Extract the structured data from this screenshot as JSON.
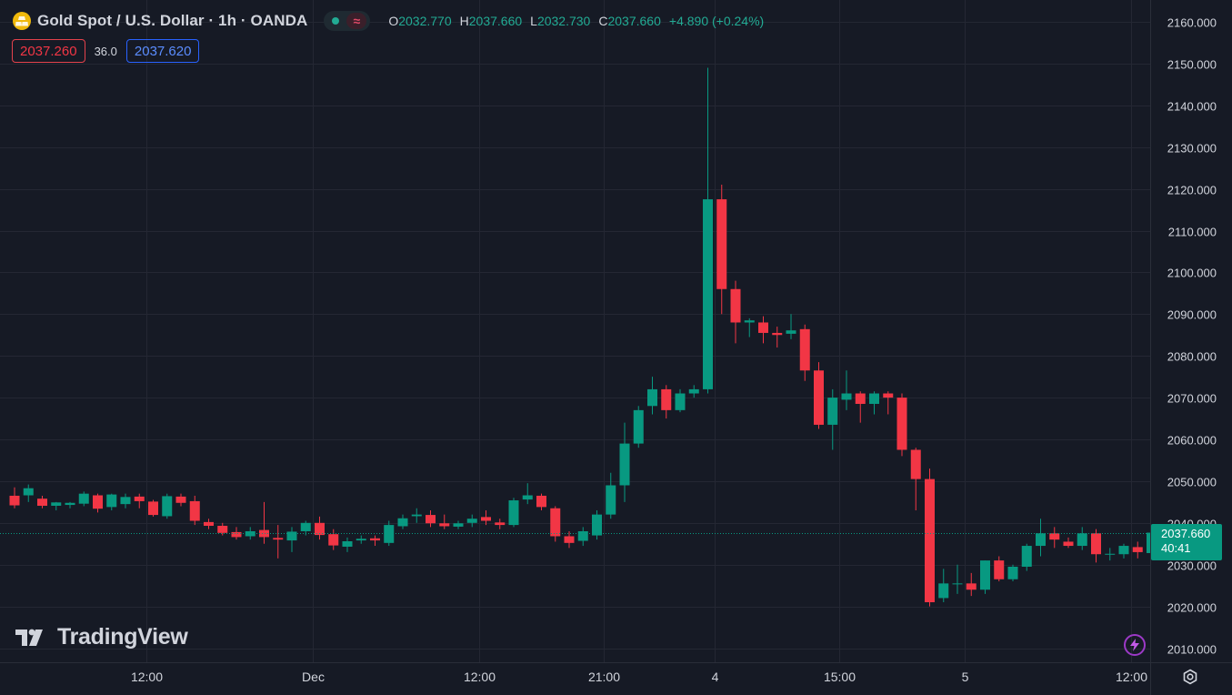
{
  "legend": {
    "title": "Gold Spot / U.S. Dollar · 1h · OANDA",
    "approx_symbol": "≈",
    "o_label": "O",
    "o_val": "2032.770",
    "h_label": "H",
    "h_val": "2037.660",
    "l_label": "L",
    "l_val": "2032.730",
    "c_label": "C",
    "c_val": "2037.660",
    "change": "+4.890 (+0.24%)"
  },
  "quote": {
    "bid": "2037.260",
    "spread": "36.0",
    "ask": "2037.620"
  },
  "branding": {
    "name": "TradingView"
  },
  "last_price": {
    "price": "2037.660",
    "countdown": "40:41"
  },
  "icons": {
    "symbol": "gold-bars-icon",
    "status": "market-open-dot-icon",
    "logo": "tradingview-logo-icon",
    "alert": "lightning-bolt-icon",
    "settings": "gear-icon"
  },
  "colors": {
    "up": "#089981",
    "down": "#f23645",
    "background": "#161a25",
    "grid": "#242733",
    "text": "#d1d4dc"
  },
  "chart_data": {
    "type": "candlestick",
    "title": "Gold Spot / U.S. Dollar · 1h · OANDA",
    "ylim": [
      2005,
      2163
    ],
    "y_ticks": [
      2010,
      2020,
      2030,
      2040,
      2050,
      2060,
      2070,
      2080,
      2090,
      2100,
      2110,
      2120,
      2130,
      2140,
      2150,
      2160
    ],
    "y_tick_labels": [
      "2010.000",
      "2020.000",
      "2030.000",
      "2040.000",
      "2050.000",
      "2060.000",
      "2070.000",
      "2080.000",
      "2090.000",
      "2100.000",
      "2110.000",
      "2120.000",
      "2130.000",
      "2140.000",
      "2150.000",
      "2160.000"
    ],
    "x_tick_labels": [
      {
        "index": 9.5,
        "label": "12:00"
      },
      {
        "index": 21.5,
        "label": "Dec"
      },
      {
        "index": 33.5,
        "label": "12:00"
      },
      {
        "index": 42.5,
        "label": "21:00"
      },
      {
        "index": 50.5,
        "label": "4"
      },
      {
        "index": 59.5,
        "label": "15:00"
      },
      {
        "index": 68.5,
        "label": "5"
      },
      {
        "index": 80.5,
        "label": "12:00"
      }
    ],
    "last_price": 2037.66,
    "grid": true,
    "candles": [
      [
        2046.5,
        2048.5,
        2043.5,
        2044.2
      ],
      [
        2046.6,
        2049.2,
        2045.0,
        2048.3
      ],
      [
        2045.8,
        2046.5,
        2043.5,
        2044.1
      ],
      [
        2044.1,
        2045.0,
        2043.0,
        2044.9
      ],
      [
        2044.3,
        2045.0,
        2043.5,
        2044.8
      ],
      [
        2044.6,
        2047.5,
        2044.0,
        2047.0
      ],
      [
        2046.6,
        2047.0,
        2042.5,
        2043.4
      ],
      [
        2043.8,
        2047.0,
        2043.0,
        2046.8
      ],
      [
        2044.5,
        2047.0,
        2043.5,
        2046.2
      ],
      [
        2046.3,
        2047.0,
        2043.5,
        2045.2
      ],
      [
        2045.1,
        2045.5,
        2041.5,
        2041.9
      ],
      [
        2041.6,
        2047.0,
        2041.0,
        2046.4
      ],
      [
        2046.3,
        2047.0,
        2044.0,
        2044.8
      ],
      [
        2045.2,
        2046.5,
        2039.5,
        2040.5
      ],
      [
        2040.2,
        2041.0,
        2038.5,
        2039.3
      ],
      [
        2039.3,
        2040.0,
        2037.0,
        2037.6
      ],
      [
        2037.8,
        2039.0,
        2036.0,
        2036.6
      ],
      [
        2036.8,
        2039.0,
        2036.0,
        2038.0
      ],
      [
        2038.3,
        2045.0,
        2035.0,
        2036.6
      ],
      [
        2036.4,
        2039.5,
        2031.5,
        2036.0
      ],
      [
        2035.8,
        2039.0,
        2033.0,
        2037.9
      ],
      [
        2038.0,
        2040.5,
        2037.0,
        2040.0
      ],
      [
        2040.0,
        2041.5,
        2036.0,
        2037.1
      ],
      [
        2037.3,
        2038.5,
        2033.5,
        2034.6
      ],
      [
        2034.3,
        2036.5,
        2033.0,
        2035.6
      ],
      [
        2035.8,
        2037.0,
        2035.0,
        2036.2
      ],
      [
        2036.3,
        2037.0,
        2034.5,
        2035.8
      ],
      [
        2035.2,
        2040.5,
        2034.5,
        2039.5
      ],
      [
        2039.2,
        2042.0,
        2038.5,
        2041.1
      ],
      [
        2041.6,
        2043.5,
        2040.0,
        2042.0
      ],
      [
        2041.9,
        2043.0,
        2039.0,
        2039.9
      ],
      [
        2039.9,
        2042.0,
        2038.5,
        2039.2
      ],
      [
        2039.1,
        2040.5,
        2038.5,
        2039.9
      ],
      [
        2040.0,
        2042.0,
        2039.0,
        2041.0
      ],
      [
        2041.4,
        2043.0,
        2039.5,
        2040.5
      ],
      [
        2040.1,
        2041.0,
        2038.5,
        2039.5
      ],
      [
        2039.5,
        2046.0,
        2039.0,
        2045.4
      ],
      [
        2045.6,
        2049.5,
        2044.5,
        2046.6
      ],
      [
        2046.5,
        2047.0,
        2043.0,
        2043.8
      ],
      [
        2043.5,
        2044.0,
        2035.5,
        2036.8
      ],
      [
        2036.8,
        2038.0,
        2034.0,
        2035.2
      ],
      [
        2035.7,
        2039.0,
        2034.5,
        2038.0
      ],
      [
        2037.0,
        2043.0,
        2036.0,
        2042.0
      ],
      [
        2042.0,
        2052.0,
        2041.0,
        2049.0
      ],
      [
        2049.0,
        2064.0,
        2045.0,
        2059.0
      ],
      [
        2059.0,
        2068.0,
        2058.0,
        2067.0
      ],
      [
        2068.0,
        2075.0,
        2066.0,
        2072.0
      ],
      [
        2072.0,
        2073.0,
        2065.0,
        2067.0
      ],
      [
        2067.0,
        2072.0,
        2066.5,
        2071.0
      ],
      [
        2071.0,
        2073.0,
        2070.0,
        2072.0
      ],
      [
        2072.0,
        2149.0,
        2071.0,
        2117.5
      ],
      [
        2117.5,
        2121.0,
        2090.0,
        2096.0
      ],
      [
        2096.0,
        2098.0,
        2083.0,
        2088.0
      ],
      [
        2088.0,
        2089.0,
        2084.5,
        2088.5
      ],
      [
        2088.0,
        2089.5,
        2083.0,
        2085.5
      ],
      [
        2085.5,
        2087.0,
        2082.0,
        2085.0
      ],
      [
        2085.3,
        2090.0,
        2084.0,
        2086.1
      ],
      [
        2086.4,
        2087.5,
        2074.0,
        2076.5
      ],
      [
        2076.5,
        2078.5,
        2062.5,
        2063.5
      ],
      [
        2063.5,
        2072.0,
        2057.5,
        2070.0
      ],
      [
        2069.5,
        2076.5,
        2067.0,
        2071.0
      ],
      [
        2071.0,
        2071.5,
        2064.0,
        2068.5
      ],
      [
        2068.5,
        2071.5,
        2066.0,
        2071.0
      ],
      [
        2071.0,
        2071.5,
        2066.0,
        2070.0
      ],
      [
        2070.0,
        2071.0,
        2056.0,
        2057.5
      ],
      [
        2057.5,
        2058.0,
        2043.0,
        2050.5
      ],
      [
        2050.5,
        2053.0,
        2020.0,
        2021.0
      ],
      [
        2022.0,
        2029.0,
        2021.0,
        2025.5
      ],
      [
        2025.5,
        2030.0,
        2023.0,
        2025.5
      ],
      [
        2025.5,
        2028.0,
        2022.5,
        2024.0
      ],
      [
        2024.0,
        2031.0,
        2023.0,
        2031.0
      ],
      [
        2031.0,
        2032.0,
        2026.0,
        2026.5
      ],
      [
        2026.5,
        2030.0,
        2026.0,
        2029.5
      ],
      [
        2029.5,
        2035.0,
        2028.5,
        2034.5
      ],
      [
        2034.5,
        2041.0,
        2032.0,
        2037.5
      ],
      [
        2037.5,
        2039.0,
        2034.0,
        2036.0
      ],
      [
        2035.5,
        2036.5,
        2034.0,
        2034.5
      ],
      [
        2034.5,
        2039.0,
        2033.5,
        2037.5
      ],
      [
        2037.5,
        2038.5,
        2030.5,
        2032.5
      ],
      [
        2032.5,
        2034.0,
        2031.0,
        2032.6
      ],
      [
        2032.5,
        2035.0,
        2031.5,
        2034.5
      ],
      [
        2034.2,
        2035.5,
        2031.5,
        2033.0
      ],
      [
        2032.77,
        2037.66,
        2032.73,
        2037.66
      ]
    ]
  }
}
